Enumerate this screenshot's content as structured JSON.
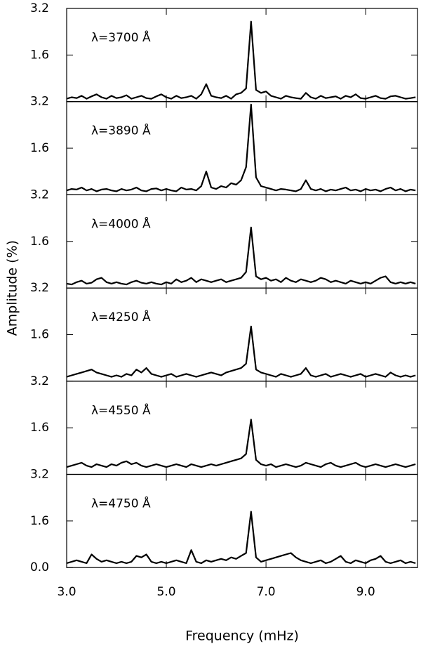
{
  "chart_data": [
    {
      "type": "line",
      "annotation": "λ=3700 Å",
      "color": "#000000",
      "xlim": [
        3.0,
        10.04
      ],
      "ylim": [
        0,
        3.2
      ],
      "yticks": [
        1.6,
        3.2
      ],
      "x": [
        3.0,
        3.1,
        3.2,
        3.3,
        3.4,
        3.5,
        3.6,
        3.7,
        3.8,
        3.9,
        4.0,
        4.1,
        4.2,
        4.3,
        4.4,
        4.5,
        4.6,
        4.7,
        4.8,
        4.9,
        5.0,
        5.1,
        5.2,
        5.3,
        5.4,
        5.5,
        5.6,
        5.7,
        5.8,
        5.9,
        6.0,
        6.1,
        6.2,
        6.3,
        6.4,
        6.5,
        6.6,
        6.7,
        6.8,
        6.9,
        7.0,
        7.1,
        7.2,
        7.3,
        7.4,
        7.5,
        7.6,
        7.7,
        7.8,
        7.9,
        8.0,
        8.1,
        8.2,
        8.3,
        8.4,
        8.5,
        8.6,
        8.7,
        8.8,
        8.9,
        9.0,
        9.1,
        9.2,
        9.3,
        9.4,
        9.5,
        9.6,
        9.7,
        9.8,
        9.9,
        10.0
      ],
      "values": [
        0.1,
        0.15,
        0.12,
        0.2,
        0.1,
        0.18,
        0.25,
        0.15,
        0.1,
        0.2,
        0.12,
        0.15,
        0.22,
        0.1,
        0.15,
        0.2,
        0.12,
        0.1,
        0.18,
        0.25,
        0.15,
        0.1,
        0.2,
        0.12,
        0.15,
        0.2,
        0.1,
        0.25,
        0.6,
        0.2,
        0.15,
        0.12,
        0.2,
        0.1,
        0.25,
        0.3,
        0.45,
        2.75,
        0.4,
        0.3,
        0.35,
        0.2,
        0.15,
        0.1,
        0.2,
        0.15,
        0.12,
        0.1,
        0.3,
        0.15,
        0.1,
        0.2,
        0.12,
        0.15,
        0.18,
        0.1,
        0.2,
        0.15,
        0.25,
        0.12,
        0.1,
        0.15,
        0.2,
        0.12,
        0.1,
        0.18,
        0.2,
        0.15,
        0.1,
        0.12,
        0.15
      ]
    },
    {
      "type": "line",
      "annotation": "λ=3890 Å",
      "color": "#000000",
      "xlim": [
        3.0,
        10.04
      ],
      "ylim": [
        0,
        3.2
      ],
      "yticks": [
        1.6,
        3.2
      ],
      "x": [
        3.0,
        3.1,
        3.2,
        3.3,
        3.4,
        3.5,
        3.6,
        3.7,
        3.8,
        3.9,
        4.0,
        4.1,
        4.2,
        4.3,
        4.4,
        4.5,
        4.6,
        4.7,
        4.8,
        4.9,
        5.0,
        5.1,
        5.2,
        5.3,
        5.4,
        5.5,
        5.6,
        5.7,
        5.8,
        5.9,
        6.0,
        6.1,
        6.2,
        6.3,
        6.4,
        6.5,
        6.6,
        6.7,
        6.8,
        6.9,
        7.0,
        7.1,
        7.2,
        7.3,
        7.4,
        7.5,
        7.6,
        7.7,
        7.8,
        7.9,
        8.0,
        8.1,
        8.2,
        8.3,
        8.4,
        8.5,
        8.6,
        8.7,
        8.8,
        8.9,
        9.0,
        9.1,
        9.2,
        9.3,
        9.4,
        9.5,
        9.6,
        9.7,
        9.8,
        9.9,
        10.0
      ],
      "values": [
        0.15,
        0.2,
        0.18,
        0.25,
        0.15,
        0.2,
        0.12,
        0.18,
        0.2,
        0.15,
        0.12,
        0.2,
        0.15,
        0.18,
        0.25,
        0.15,
        0.12,
        0.2,
        0.22,
        0.15,
        0.2,
        0.15,
        0.12,
        0.25,
        0.18,
        0.2,
        0.15,
        0.3,
        0.8,
        0.25,
        0.2,
        0.3,
        0.25,
        0.4,
        0.35,
        0.5,
        0.95,
        3.1,
        0.6,
        0.3,
        0.25,
        0.2,
        0.15,
        0.2,
        0.18,
        0.15,
        0.12,
        0.2,
        0.5,
        0.2,
        0.15,
        0.2,
        0.12,
        0.18,
        0.15,
        0.2,
        0.25,
        0.15,
        0.18,
        0.12,
        0.2,
        0.15,
        0.18,
        0.12,
        0.2,
        0.25,
        0.15,
        0.2,
        0.12,
        0.18,
        0.15
      ]
    },
    {
      "type": "line",
      "annotation": "λ=4000 Å",
      "color": "#000000",
      "xlim": [
        3.0,
        10.04
      ],
      "ylim": [
        0,
        3.2
      ],
      "yticks": [
        1.6,
        3.2
      ],
      "x": [
        3.0,
        3.1,
        3.2,
        3.3,
        3.4,
        3.5,
        3.6,
        3.7,
        3.8,
        3.9,
        4.0,
        4.1,
        4.2,
        4.3,
        4.4,
        4.5,
        4.6,
        4.7,
        4.8,
        4.9,
        5.0,
        5.1,
        5.2,
        5.3,
        5.4,
        5.5,
        5.6,
        5.7,
        5.8,
        5.9,
        6.0,
        6.1,
        6.2,
        6.3,
        6.4,
        6.5,
        6.6,
        6.7,
        6.8,
        6.9,
        7.0,
        7.1,
        7.2,
        7.3,
        7.4,
        7.5,
        7.6,
        7.7,
        7.8,
        7.9,
        8.0,
        8.1,
        8.2,
        8.3,
        8.4,
        8.5,
        8.6,
        8.7,
        8.8,
        8.9,
        9.0,
        9.1,
        9.2,
        9.3,
        9.4,
        9.5,
        9.6,
        9.7,
        9.8,
        9.9,
        10.0
      ],
      "values": [
        0.15,
        0.12,
        0.2,
        0.25,
        0.15,
        0.18,
        0.3,
        0.35,
        0.2,
        0.15,
        0.2,
        0.15,
        0.12,
        0.2,
        0.25,
        0.18,
        0.15,
        0.2,
        0.15,
        0.12,
        0.2,
        0.15,
        0.3,
        0.2,
        0.25,
        0.35,
        0.2,
        0.3,
        0.25,
        0.2,
        0.25,
        0.3,
        0.2,
        0.25,
        0.3,
        0.35,
        0.55,
        2.08,
        0.4,
        0.3,
        0.35,
        0.25,
        0.3,
        0.2,
        0.35,
        0.25,
        0.2,
        0.3,
        0.25,
        0.2,
        0.25,
        0.35,
        0.3,
        0.2,
        0.25,
        0.2,
        0.15,
        0.25,
        0.2,
        0.15,
        0.2,
        0.15,
        0.25,
        0.35,
        0.4,
        0.2,
        0.15,
        0.2,
        0.15,
        0.2,
        0.15
      ]
    },
    {
      "type": "line",
      "annotation": "λ=4250 Å",
      "color": "#000000",
      "xlim": [
        3.0,
        10.04
      ],
      "ylim": [
        0,
        3.2
      ],
      "yticks": [
        1.6,
        3.2
      ],
      "x": [
        3.0,
        3.1,
        3.2,
        3.3,
        3.4,
        3.5,
        3.6,
        3.7,
        3.8,
        3.9,
        4.0,
        4.1,
        4.2,
        4.3,
        4.4,
        4.5,
        4.6,
        4.7,
        4.8,
        4.9,
        5.0,
        5.1,
        5.2,
        5.3,
        5.4,
        5.5,
        5.6,
        5.7,
        5.8,
        5.9,
        6.0,
        6.1,
        6.2,
        6.3,
        6.4,
        6.5,
        6.6,
        6.7,
        6.8,
        6.9,
        7.0,
        7.1,
        7.2,
        7.3,
        7.4,
        7.5,
        7.6,
        7.7,
        7.8,
        7.9,
        8.0,
        8.1,
        8.2,
        8.3,
        8.4,
        8.5,
        8.6,
        8.7,
        8.8,
        8.9,
        9.0,
        9.1,
        9.2,
        9.3,
        9.4,
        9.5,
        9.6,
        9.7,
        9.8,
        9.9,
        10.0
      ],
      "values": [
        0.15,
        0.2,
        0.25,
        0.3,
        0.35,
        0.4,
        0.3,
        0.25,
        0.2,
        0.15,
        0.2,
        0.15,
        0.25,
        0.2,
        0.4,
        0.3,
        0.45,
        0.25,
        0.2,
        0.15,
        0.2,
        0.25,
        0.15,
        0.2,
        0.25,
        0.2,
        0.15,
        0.2,
        0.25,
        0.3,
        0.25,
        0.2,
        0.3,
        0.35,
        0.4,
        0.45,
        0.6,
        1.88,
        0.4,
        0.3,
        0.25,
        0.2,
        0.15,
        0.25,
        0.2,
        0.15,
        0.2,
        0.25,
        0.45,
        0.2,
        0.15,
        0.2,
        0.25,
        0.15,
        0.2,
        0.25,
        0.2,
        0.15,
        0.2,
        0.25,
        0.15,
        0.2,
        0.25,
        0.2,
        0.15,
        0.3,
        0.2,
        0.15,
        0.2,
        0.15,
        0.2
      ]
    },
    {
      "type": "line",
      "annotation": "λ=4550 Å",
      "color": "#000000",
      "xlim": [
        3.0,
        10.04
      ],
      "ylim": [
        0,
        3.2
      ],
      "yticks": [
        1.6,
        3.2
      ],
      "x": [
        3.0,
        3.1,
        3.2,
        3.3,
        3.4,
        3.5,
        3.6,
        3.7,
        3.8,
        3.9,
        4.0,
        4.1,
        4.2,
        4.3,
        4.4,
        4.5,
        4.6,
        4.7,
        4.8,
        4.9,
        5.0,
        5.1,
        5.2,
        5.3,
        5.4,
        5.5,
        5.6,
        5.7,
        5.8,
        5.9,
        6.0,
        6.1,
        6.2,
        6.3,
        6.4,
        6.5,
        6.6,
        6.7,
        6.8,
        6.9,
        7.0,
        7.1,
        7.2,
        7.3,
        7.4,
        7.5,
        7.6,
        7.7,
        7.8,
        7.9,
        8.0,
        8.1,
        8.2,
        8.3,
        8.4,
        8.5,
        8.6,
        8.7,
        8.8,
        8.9,
        9.0,
        9.1,
        9.2,
        9.3,
        9.4,
        9.5,
        9.6,
        9.7,
        9.8,
        9.9,
        10.0
      ],
      "values": [
        0.25,
        0.3,
        0.35,
        0.4,
        0.3,
        0.25,
        0.35,
        0.3,
        0.25,
        0.35,
        0.3,
        0.4,
        0.45,
        0.35,
        0.4,
        0.3,
        0.25,
        0.3,
        0.35,
        0.3,
        0.25,
        0.3,
        0.35,
        0.3,
        0.25,
        0.35,
        0.3,
        0.25,
        0.3,
        0.35,
        0.3,
        0.35,
        0.4,
        0.45,
        0.5,
        0.55,
        0.7,
        1.88,
        0.5,
        0.35,
        0.3,
        0.35,
        0.25,
        0.3,
        0.35,
        0.3,
        0.25,
        0.3,
        0.4,
        0.35,
        0.3,
        0.25,
        0.35,
        0.4,
        0.3,
        0.25,
        0.3,
        0.35,
        0.4,
        0.3,
        0.25,
        0.3,
        0.35,
        0.3,
        0.25,
        0.3,
        0.35,
        0.3,
        0.25,
        0.3,
        0.35
      ]
    },
    {
      "type": "line",
      "annotation": "λ=4750 Å",
      "color": "#000000",
      "xlim": [
        3.0,
        10.04
      ],
      "ylim": [
        0,
        3.2
      ],
      "yticks": [
        {
          "value": 0,
          "label": "0.0"
        },
        1.6,
        3.2
      ],
      "xticks": [
        {
          "value": 3,
          "label": "3.0"
        },
        {
          "value": 5,
          "label": "5.0"
        },
        {
          "value": 7,
          "label": "7.0"
        },
        {
          "value": 9,
          "label": "9.0"
        }
      ],
      "xlabel": "Frequency (mHz)",
      "ylabel": "Amplitude (%)",
      "x": [
        3.0,
        3.1,
        3.2,
        3.3,
        3.4,
        3.5,
        3.6,
        3.7,
        3.8,
        3.9,
        4.0,
        4.1,
        4.2,
        4.3,
        4.4,
        4.5,
        4.6,
        4.7,
        4.8,
        4.9,
        5.0,
        5.1,
        5.2,
        5.3,
        5.4,
        5.5,
        5.6,
        5.7,
        5.8,
        5.9,
        6.0,
        6.1,
        6.2,
        6.3,
        6.4,
        6.5,
        6.6,
        6.7,
        6.8,
        6.9,
        7.0,
        7.1,
        7.2,
        7.3,
        7.4,
        7.5,
        7.6,
        7.7,
        7.8,
        7.9,
        8.0,
        8.1,
        8.2,
        8.3,
        8.4,
        8.5,
        8.6,
        8.7,
        8.8,
        8.9,
        9.0,
        9.1,
        9.2,
        9.3,
        9.4,
        9.5,
        9.6,
        9.7,
        9.8,
        9.9,
        10.0
      ],
      "values": [
        0.15,
        0.2,
        0.25,
        0.2,
        0.15,
        0.45,
        0.3,
        0.2,
        0.25,
        0.2,
        0.15,
        0.2,
        0.15,
        0.2,
        0.4,
        0.35,
        0.45,
        0.2,
        0.15,
        0.2,
        0.15,
        0.2,
        0.25,
        0.2,
        0.15,
        0.6,
        0.2,
        0.15,
        0.25,
        0.2,
        0.25,
        0.3,
        0.25,
        0.35,
        0.3,
        0.4,
        0.5,
        1.92,
        0.35,
        0.2,
        0.25,
        0.3,
        0.35,
        0.4,
        0.45,
        0.5,
        0.35,
        0.25,
        0.2,
        0.15,
        0.2,
        0.25,
        0.15,
        0.2,
        0.3,
        0.4,
        0.2,
        0.15,
        0.25,
        0.2,
        0.15,
        0.25,
        0.3,
        0.4,
        0.2,
        0.15,
        0.2,
        0.25,
        0.15,
        0.2,
        0.15
      ]
    }
  ]
}
